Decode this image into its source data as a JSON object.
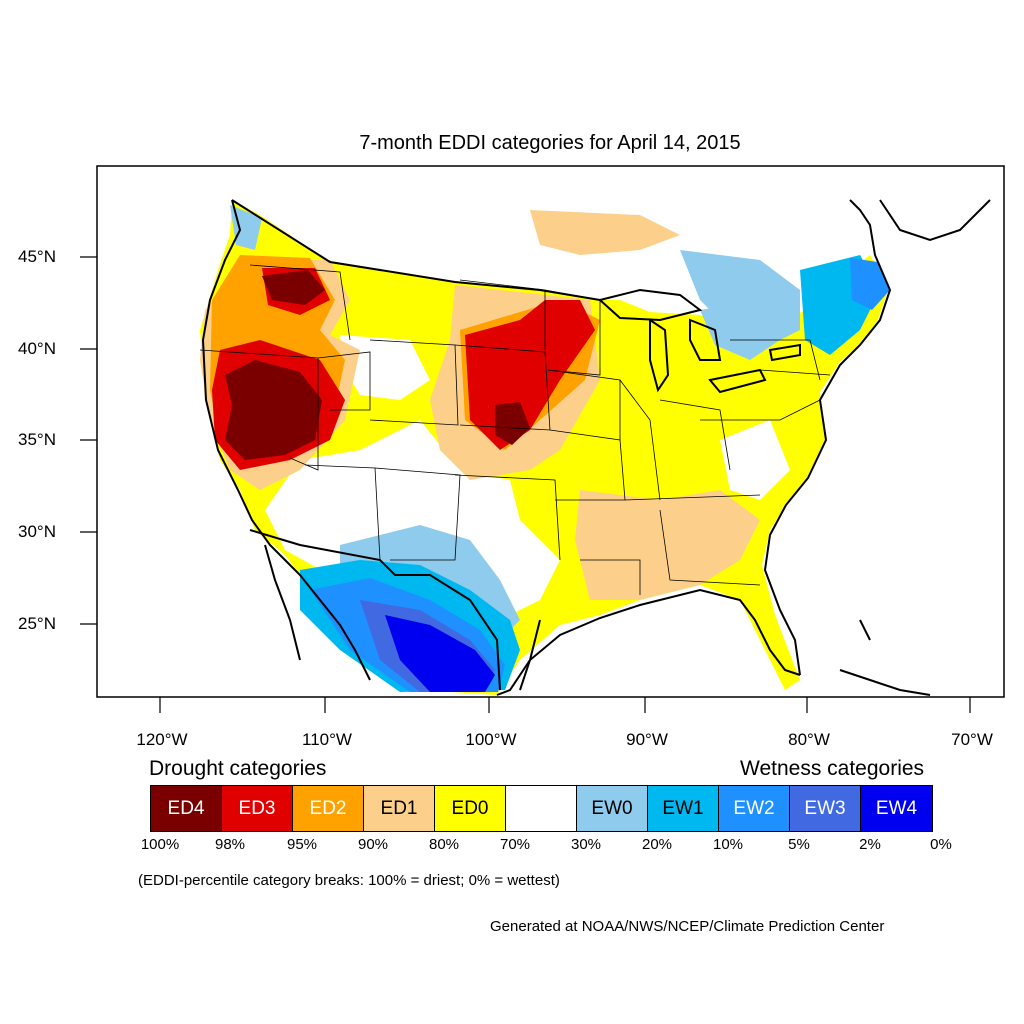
{
  "title": "7-month EDDI categories for April 14, 2015",
  "axes": {
    "lat_labels": [
      "45°N",
      "40°N",
      "35°N",
      "30°N",
      "25°N"
    ],
    "lon_labels": [
      "120°W",
      "110°W",
      "100°W",
      "90°W",
      "80°W",
      "70°W"
    ]
  },
  "legend": {
    "drought_heading": "Drought categories",
    "wetness_heading": "Wetness categories",
    "categories": [
      {
        "label": "ED4",
        "color": "#7a0000",
        "text_color": "#ffffff"
      },
      {
        "label": "ED3",
        "color": "#e00000",
        "text_color": "#ffffff"
      },
      {
        "label": "ED2",
        "color": "#ffa200",
        "text_color": "#ffffff"
      },
      {
        "label": "ED1",
        "color": "#fcd08a",
        "text_color": "#000000"
      },
      {
        "label": "ED0",
        "color": "#ffff00",
        "text_color": "#000000"
      },
      {
        "label": "",
        "color": "#ffffff",
        "text_color": "#000000"
      },
      {
        "label": "EW0",
        "color": "#8fcbec",
        "text_color": "#000000"
      },
      {
        "label": "EW1",
        "color": "#00b8f0",
        "text_color": "#000000"
      },
      {
        "label": "EW2",
        "color": "#1e90ff",
        "text_color": "#ffffff"
      },
      {
        "label": "EW3",
        "color": "#4169e1",
        "text_color": "#ffffff"
      },
      {
        "label": "EW4",
        "color": "#0000f0",
        "text_color": "#ffffff"
      }
    ],
    "breaks": [
      "100%",
      "98%",
      "95%",
      "90%",
      "80%",
      "70%",
      "30%",
      "20%",
      "10%",
      "5%",
      "2%",
      "0%"
    ]
  },
  "note": "(EDDI-percentile category breaks: 100% = driest; 0% = wettest)",
  "credit": "Generated at NOAA/NWS/NCEP/Climate Prediction Center"
}
